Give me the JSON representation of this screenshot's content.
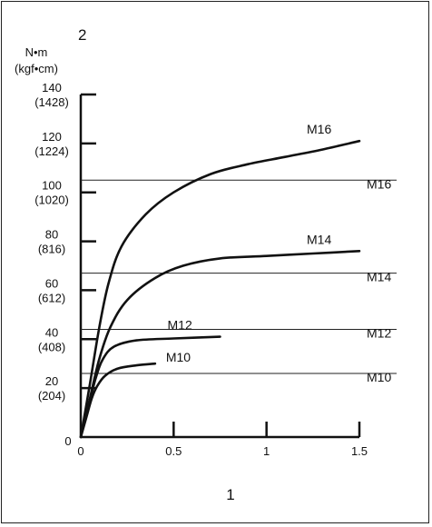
{
  "chart_data": {
    "type": "line",
    "corner_label": "2",
    "x_axis_label": "1",
    "y_unit": "N•m",
    "y_unit_alt": "(kgf•cm)",
    "xlim": [
      0,
      1.5
    ],
    "ylim": [
      0,
      140
    ],
    "x_ticks": [
      {
        "value": 0,
        "label": "0"
      },
      {
        "value": 0.5,
        "label": "0.5"
      },
      {
        "value": 1,
        "label": "1"
      },
      {
        "value": 1.5,
        "label": "1.5"
      }
    ],
    "y_ticks": [
      {
        "value": 0,
        "label": "0",
        "label2": ""
      },
      {
        "value": 20,
        "label": "20",
        "label2": "(204)"
      },
      {
        "value": 40,
        "label": "40",
        "label2": "(408)"
      },
      {
        "value": 60,
        "label": "60",
        "label2": "(612)"
      },
      {
        "value": 80,
        "label": "80",
        "label2": "(816)"
      },
      {
        "value": 100,
        "label": "100",
        "label2": "(1020)"
      },
      {
        "value": 120,
        "label": "120",
        "label2": "(1224)"
      },
      {
        "value": 140,
        "label": "140",
        "label2": "(1428)"
      }
    ],
    "series": [
      {
        "name": "M10",
        "points": [
          [
            0,
            0
          ],
          [
            0.03,
            8
          ],
          [
            0.06,
            16
          ],
          [
            0.09,
            21
          ],
          [
            0.13,
            25
          ],
          [
            0.2,
            28
          ],
          [
            0.3,
            29.3
          ],
          [
            0.4,
            30
          ]
        ]
      },
      {
        "name": "M12",
        "points": [
          [
            0,
            0
          ],
          [
            0.04,
            12
          ],
          [
            0.08,
            24
          ],
          [
            0.12,
            32
          ],
          [
            0.18,
            37
          ],
          [
            0.3,
            39.5
          ],
          [
            0.5,
            40.3
          ],
          [
            0.75,
            41
          ]
        ]
      },
      {
        "name": "M14",
        "points": [
          [
            0,
            0
          ],
          [
            0.05,
            16
          ],
          [
            0.1,
            32
          ],
          [
            0.16,
            45
          ],
          [
            0.25,
            56
          ],
          [
            0.4,
            65
          ],
          [
            0.55,
            70
          ],
          [
            0.75,
            73
          ],
          [
            1.0,
            74
          ],
          [
            1.25,
            75
          ],
          [
            1.5,
            76
          ]
        ]
      },
      {
        "name": "M16",
        "points": [
          [
            0,
            0
          ],
          [
            0.05,
            22
          ],
          [
            0.1,
            45
          ],
          [
            0.15,
            63
          ],
          [
            0.22,
            78
          ],
          [
            0.35,
            91
          ],
          [
            0.5,
            100
          ],
          [
            0.7,
            107.5
          ],
          [
            0.9,
            111.5
          ],
          [
            1.1,
            114.5
          ],
          [
            1.3,
            117.5
          ],
          [
            1.5,
            121
          ]
        ]
      }
    ],
    "reference_lines": [
      {
        "name": "M16",
        "y": 105
      },
      {
        "name": "M14",
        "y": 67
      },
      {
        "name": "M12",
        "y": 44
      },
      {
        "name": "M10",
        "y": 26
      }
    ]
  }
}
